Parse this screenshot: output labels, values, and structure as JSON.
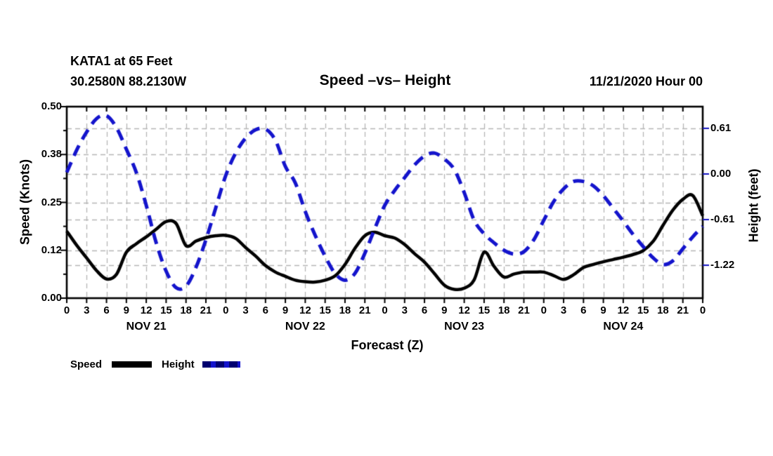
{
  "header": {
    "station_line1": "KATA1 at 65 Feet",
    "station_line2": "30.2580N 88.2130W",
    "title": "Speed –vs– Height",
    "datetime": "11/21/2020 Hour 00"
  },
  "legend": {
    "speed_label": "Speed",
    "height_label": "Height"
  },
  "colors": {
    "speed": "#000000",
    "height": "#1414cc",
    "height_dash_dark": "#000070",
    "grid": "#b5b5b5",
    "axis": "#000000",
    "right_tick": "#1313c0"
  },
  "chart_data": {
    "type": "line",
    "title": "Speed –vs– Height",
    "xlabel": "Forecast (Z)",
    "grid": "on",
    "legend_position": "bottom-left",
    "left_axis": {
      "label": "Speed (Knots)",
      "range": [
        0,
        0.5
      ],
      "ticks": [
        {
          "v": 0.0,
          "label": "0.00"
        },
        {
          "v": 0.125,
          "label": "0.12"
        },
        {
          "v": 0.25,
          "label": "0.25"
        },
        {
          "v": 0.375,
          "label": "0.38"
        },
        {
          "v": 0.5,
          "label": "0.50"
        }
      ],
      "minor_ticks": [
        0.0625,
        0.1875,
        0.3125,
        0.4375
      ]
    },
    "right_axis": {
      "label": "Height (feet)",
      "range": [
        -1.66,
        0.9
      ],
      "ticks": [
        {
          "v": 0.61,
          "label": "0.61"
        },
        {
          "v": 0.0,
          "label": "0.00"
        },
        {
          "v": -0.61,
          "label": "-0.61"
        },
        {
          "v": -1.22,
          "label": "-1.22"
        }
      ]
    },
    "x_axis": {
      "range_hours": [
        0,
        96
      ],
      "tick_step": 3,
      "tick_labels": [
        "0",
        "3",
        "6",
        "9",
        "12",
        "15",
        "18",
        "21",
        "0",
        "3",
        "6",
        "9",
        "12",
        "15",
        "18",
        "21",
        "0",
        "3",
        "6",
        "9",
        "12",
        "15",
        "18",
        "21",
        "0",
        "3",
        "6",
        "9",
        "12",
        "15",
        "18",
        "21",
        "0"
      ],
      "day_labels": [
        {
          "label": "NOV 21",
          "hour": 12
        },
        {
          "label": "NOV 22",
          "hour": 36
        },
        {
          "label": "NOV 23",
          "hour": 60
        },
        {
          "label": "NOV 24",
          "hour": 84
        }
      ]
    },
    "gridlines": {
      "vertical_hours_step": 3,
      "horizontal_left_values": [
        0.125,
        0.25,
        0.375
      ],
      "horizontal_right_values": [
        0.61,
        0.0,
        -0.61,
        -1.22
      ]
    },
    "hours": [
      0,
      1.5,
      3,
      4.5,
      6,
      7.5,
      9,
      10.5,
      12,
      13.5,
      15,
      16.5,
      18,
      19.5,
      21,
      22.5,
      24,
      25.5,
      27,
      28.5,
      30,
      31.5,
      33,
      34.5,
      36,
      37.5,
      39,
      40.5,
      42,
      43.5,
      45,
      46.5,
      48,
      49.5,
      51,
      52.5,
      54,
      55.5,
      57,
      58.5,
      60,
      61.5,
      63,
      64.5,
      66,
      67.5,
      69,
      70.5,
      72,
      73.5,
      75,
      76.5,
      78,
      79.5,
      81,
      82.5,
      84,
      85.5,
      87,
      88.5,
      90,
      91.5,
      93,
      94.5,
      96
    ],
    "series": [
      {
        "name": "Speed",
        "axis": "left",
        "style": "solid",
        "values": [
          0.175,
          0.138,
          0.105,
          0.072,
          0.05,
          0.062,
          0.12,
          0.142,
          0.16,
          0.18,
          0.2,
          0.195,
          0.137,
          0.149,
          0.158,
          0.163,
          0.164,
          0.156,
          0.132,
          0.11,
          0.085,
          0.068,
          0.057,
          0.047,
          0.043,
          0.042,
          0.047,
          0.058,
          0.088,
          0.13,
          0.163,
          0.172,
          0.163,
          0.157,
          0.14,
          0.116,
          0.094,
          0.064,
          0.034,
          0.023,
          0.026,
          0.048,
          0.12,
          0.083,
          0.055,
          0.063,
          0.068,
          0.068,
          0.068,
          0.059,
          0.049,
          0.061,
          0.08,
          0.088,
          0.095,
          0.101,
          0.107,
          0.114,
          0.124,
          0.148,
          0.19,
          0.23,
          0.258,
          0.268,
          0.215
        ]
      },
      {
        "name": "Height",
        "axis": "right",
        "style": "dashed",
        "values": [
          0.02,
          0.32,
          0.56,
          0.74,
          0.78,
          0.62,
          0.33,
          0.02,
          -0.42,
          -0.92,
          -1.3,
          -1.52,
          -1.5,
          -1.25,
          -0.88,
          -0.45,
          -0.02,
          0.28,
          0.48,
          0.59,
          0.6,
          0.45,
          0.1,
          -0.12,
          -0.5,
          -0.82,
          -1.1,
          -1.33,
          -1.42,
          -1.33,
          -1.06,
          -0.73,
          -0.42,
          -0.22,
          -0.05,
          0.12,
          0.24,
          0.28,
          0.2,
          0.06,
          -0.25,
          -0.62,
          -0.8,
          -0.92,
          -1.02,
          -1.07,
          -1.04,
          -0.88,
          -0.62,
          -0.37,
          -0.2,
          -0.1,
          -0.1,
          -0.16,
          -0.29,
          -0.46,
          -0.63,
          -0.81,
          -0.97,
          -1.12,
          -1.21,
          -1.16,
          -1.0,
          -0.84,
          -0.7
        ]
      }
    ]
  }
}
